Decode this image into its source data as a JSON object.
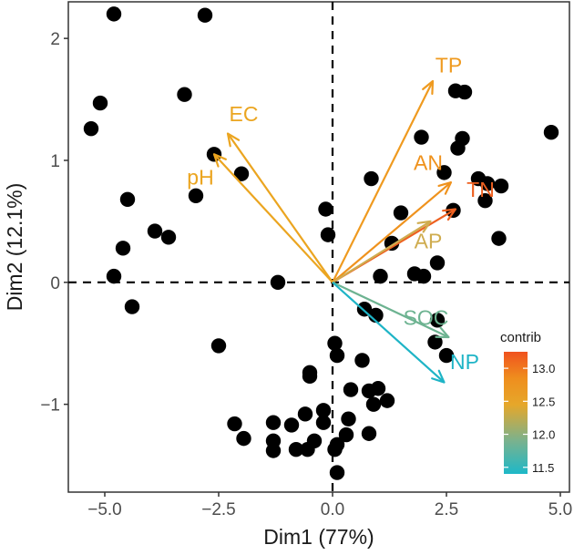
{
  "chart_data": {
    "type": "scatter",
    "subtype": "pca-biplot",
    "title": "",
    "xlabel": "Dim1 (77%)",
    "ylabel": "Dim2 (12.1%)",
    "xlim": [
      -5.8,
      5.2
    ],
    "ylim": [
      -1.72,
      2.3
    ],
    "xticks": [
      -5.0,
      -2.5,
      0.0,
      2.5,
      5.0
    ],
    "xtick_labels": [
      "−5.0",
      "−2.5",
      "0.0",
      "2.5",
      "5.0"
    ],
    "yticks": [
      -1,
      0,
      1,
      2
    ],
    "ytick_labels": [
      "−1",
      "0",
      "1",
      "2"
    ],
    "grid": false,
    "reference_lines": {
      "x": 0,
      "y": 0,
      "style": "dashed"
    },
    "point_color": "#000000",
    "points": [
      [
        -4.8,
        2.2
      ],
      [
        -2.8,
        2.19
      ],
      [
        -5.1,
        1.47
      ],
      [
        -5.3,
        1.26
      ],
      [
        -3.25,
        1.54
      ],
      [
        -2.6,
        1.05
      ],
      [
        -2.0,
        0.89
      ],
      [
        -3.0,
        0.71
      ],
      [
        -4.5,
        0.68
      ],
      [
        -3.9,
        0.42
      ],
      [
        -3.6,
        0.37
      ],
      [
        -4.6,
        0.28
      ],
      [
        -4.8,
        0.05
      ],
      [
        -4.4,
        -0.2
      ],
      [
        -1.2,
        0.0
      ],
      [
        -2.5,
        -0.52
      ],
      [
        -0.15,
        0.6
      ],
      [
        -0.1,
        0.39
      ],
      [
        0.85,
        0.85
      ],
      [
        1.5,
        0.57
      ],
      [
        1.3,
        0.32
      ],
      [
        1.05,
        0.05
      ],
      [
        1.8,
        0.07
      ],
      [
        2.0,
        0.05
      ],
      [
        2.3,
        0.16
      ],
      [
        1.95,
        1.19
      ],
      [
        2.7,
        1.57
      ],
      [
        2.9,
        1.56
      ],
      [
        2.75,
        1.1
      ],
      [
        2.85,
        1.18
      ],
      [
        2.45,
        0.9
      ],
      [
        2.65,
        0.59
      ],
      [
        3.2,
        0.85
      ],
      [
        3.35,
        0.67
      ],
      [
        3.4,
        0.81
      ],
      [
        3.7,
        0.79
      ],
      [
        3.65,
        0.36
      ],
      [
        4.8,
        1.23
      ],
      [
        0.05,
        -0.5
      ],
      [
        0.1,
        -0.6
      ],
      [
        0.7,
        -0.22
      ],
      [
        0.95,
        -0.27
      ],
      [
        2.25,
        -0.49
      ],
      [
        2.3,
        -0.31
      ],
      [
        2.5,
        -0.6
      ],
      [
        0.65,
        -0.64
      ],
      [
        -0.5,
        -0.74
      ],
      [
        -0.5,
        -0.77
      ],
      [
        0.4,
        -0.88
      ],
      [
        0.8,
        -0.89
      ],
      [
        1.0,
        -0.87
      ],
      [
        1.2,
        -0.97
      ],
      [
        0.9,
        -1.0
      ],
      [
        -0.2,
        -1.05
      ],
      [
        -0.6,
        -1.08
      ],
      [
        -0.2,
        -1.15
      ],
      [
        0.35,
        -1.12
      ],
      [
        -2.15,
        -1.16
      ],
      [
        -1.3,
        -1.15
      ],
      [
        -0.9,
        -1.17
      ],
      [
        0.3,
        -1.25
      ],
      [
        0.8,
        -1.24
      ],
      [
        -1.95,
        -1.28
      ],
      [
        -1.3,
        -1.3
      ],
      [
        -0.4,
        -1.3
      ],
      [
        0.1,
        -1.33
      ],
      [
        -1.3,
        -1.38
      ],
      [
        -0.8,
        -1.37
      ],
      [
        -0.55,
        -1.37
      ],
      [
        0.05,
        -1.37
      ],
      [
        0.1,
        -1.56
      ]
    ],
    "variables": [
      {
        "name": "TP",
        "x": 2.2,
        "y": 1.65,
        "contrib": 12.8,
        "color": "#EF9A1F",
        "label_x": 2.55,
        "label_y": 1.78
      },
      {
        "name": "AN",
        "x": 2.6,
        "y": 0.82,
        "contrib": 12.85,
        "color": "#EF921D",
        "label_x": 2.1,
        "label_y": 0.98
      },
      {
        "name": "TN",
        "x": 2.7,
        "y": 0.6,
        "contrib": 13.1,
        "color": "#EE6020",
        "label_x": 3.25,
        "label_y": 0.76
      },
      {
        "name": "AP",
        "x": 2.15,
        "y": 0.5,
        "contrib": 12.3,
        "color": "#CFAC4F",
        "label_x": 2.1,
        "label_y": 0.34
      },
      {
        "name": "EC",
        "x": -2.3,
        "y": 1.22,
        "contrib": 12.75,
        "color": "#EBA520",
        "label_x": -1.95,
        "label_y": 1.38
      },
      {
        "name": "pH",
        "x": -2.6,
        "y": 1.05,
        "contrib": 12.7,
        "color": "#EBA520",
        "label_x": -2.9,
        "label_y": 0.86
      },
      {
        "name": "SOC",
        "x": 2.55,
        "y": -0.45,
        "contrib": 11.9,
        "color": "#6DB391",
        "label_x": 2.05,
        "label_y": -0.29
      },
      {
        "name": "NP",
        "x": 2.45,
        "y": -0.82,
        "contrib": 11.55,
        "color": "#1EB4C6",
        "label_x": 2.9,
        "label_y": -0.65
      }
    ],
    "legend": {
      "title": "contrib",
      "position": "right",
      "range": [
        11.4,
        13.25
      ],
      "ticks": [
        13.0,
        12.5,
        12.0,
        11.5
      ],
      "tick_labels": [
        "13.0",
        "12.5",
        "12.0",
        "11.5"
      ],
      "gradient_stops": [
        {
          "value": 11.4,
          "color": "#1DB8C8"
        },
        {
          "value": 11.9,
          "color": "#7AB28E"
        },
        {
          "value": 12.45,
          "color": "#E6A72A"
        },
        {
          "value": 12.85,
          "color": "#EF8E1E"
        },
        {
          "value": 13.25,
          "color": "#F0521E"
        }
      ]
    }
  }
}
